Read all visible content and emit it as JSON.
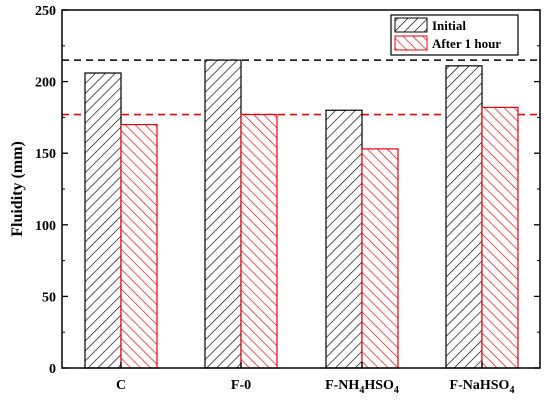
{
  "chart_data": {
    "type": "bar",
    "categories": [
      {
        "main": "C",
        "parts": []
      },
      {
        "main": "F-0",
        "parts": []
      },
      {
        "main": "",
        "parts": [
          {
            "t": "F-NH",
            "sub": false
          },
          {
            "t": "4",
            "sub": true
          },
          {
            "t": "HSO",
            "sub": false
          },
          {
            "t": "4",
            "sub": true
          }
        ]
      },
      {
        "main": "",
        "parts": [
          {
            "t": "F-NaHSO",
            "sub": false
          },
          {
            "t": "4",
            "sub": true
          }
        ]
      }
    ],
    "series": [
      {
        "name": "Initial",
        "values": [
          206,
          215,
          180,
          211
        ],
        "color": "#000000"
      },
      {
        "name": "After 1 hour",
        "values": [
          170,
          177,
          153,
          182
        ],
        "color": "#e8000b"
      }
    ],
    "reference_lines": [
      {
        "value": 215,
        "color": "#000000",
        "style": "dashed"
      },
      {
        "value": 177,
        "color": "#e8000b",
        "style": "dashed"
      }
    ],
    "ylabel": "Fluidity (mm)",
    "xlabel": "",
    "ylim": [
      0,
      250
    ],
    "yticks": [
      0,
      50,
      100,
      150,
      200,
      250
    ],
    "legend_position": "top-right",
    "grid": false
  }
}
